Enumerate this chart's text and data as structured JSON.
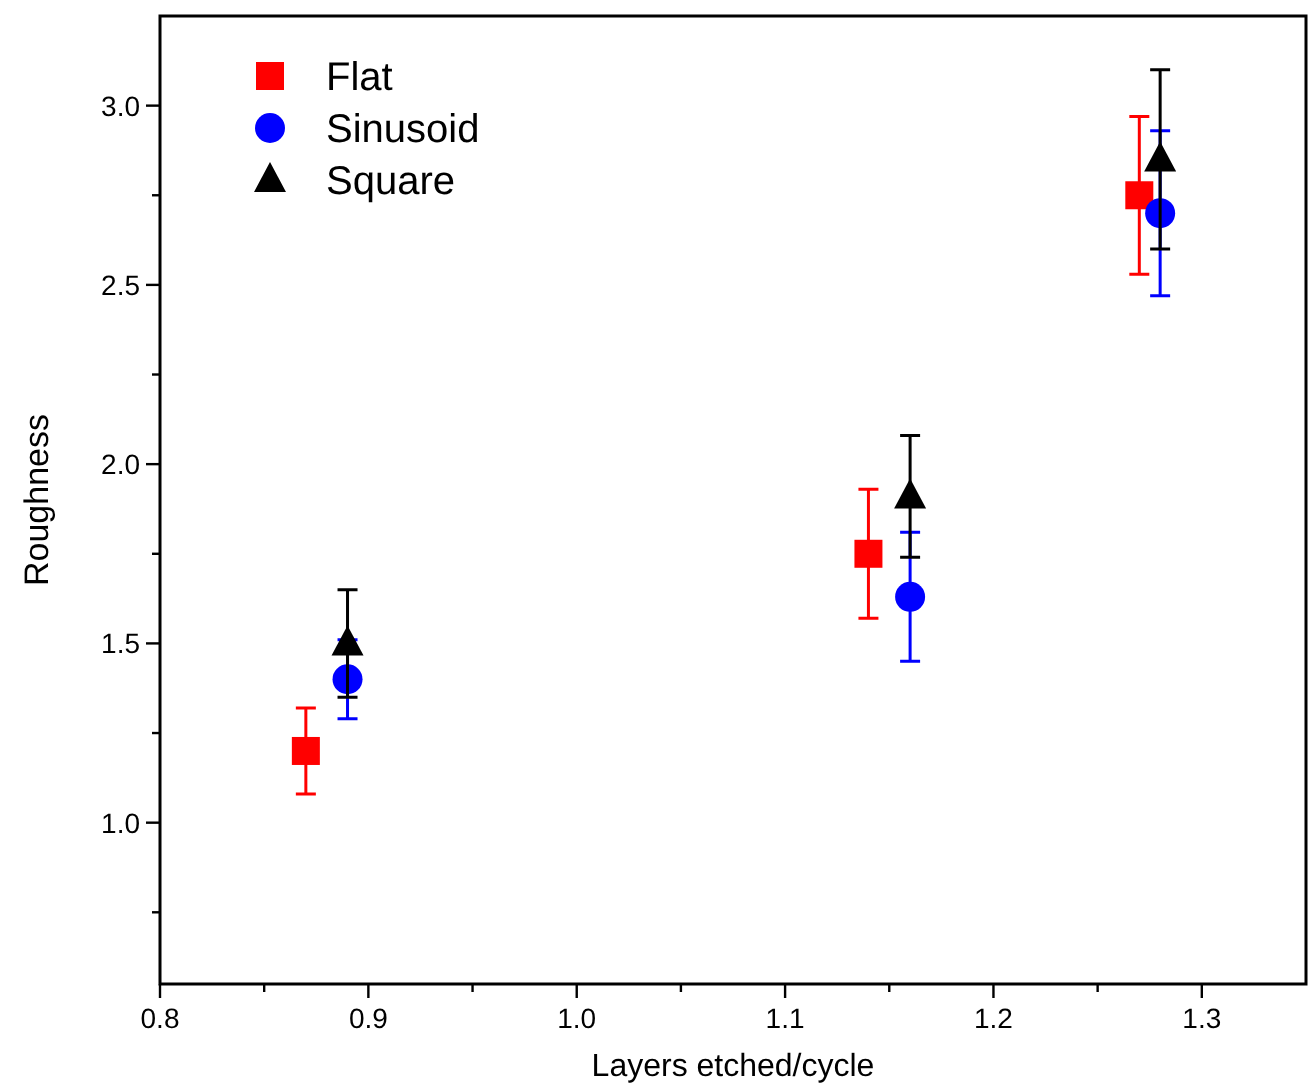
{
  "chart_data": {
    "type": "scatter",
    "xlabel": "Layers etched/cycle",
    "ylabel": "Roughness",
    "xlim": [
      0.8,
      1.35
    ],
    "ylim": [
      0.55,
      3.25
    ],
    "xticks": [
      0.8,
      {
        "value": 0.85,
        "label": null
      },
      0.9,
      {
        "value": 0.95,
        "label": null
      },
      {
        "value": 1,
        "label": "1.0"
      },
      {
        "value": 1.05,
        "label": null
      },
      1.1,
      {
        "value": 1.15,
        "label": null
      },
      1.2,
      {
        "value": 1.25,
        "label": null
      },
      1.3
    ],
    "yticks": [
      {
        "value": 0.75,
        "label": null
      },
      {
        "value": 1,
        "label": "1.0"
      },
      {
        "value": 1.25,
        "label": null
      },
      1.5,
      {
        "value": 1.75,
        "label": null
      },
      {
        "value": 2,
        "label": "2.0"
      },
      {
        "value": 2.25,
        "label": null
      },
      2.5,
      {
        "value": 2.75,
        "label": null
      },
      {
        "value": 3,
        "label": "3.0"
      }
    ],
    "legend": "top left",
    "grid": false,
    "series": [
      {
        "name": "Flat",
        "color": "#ff0000",
        "marker": "square",
        "x": [
          0.87,
          1.14,
          1.27
        ],
        "values": [
          1.2,
          1.75,
          2.75
        ],
        "errors": [
          0.12,
          0.18,
          0.22
        ]
      },
      {
        "name": "Sinusoid",
        "color": "#0000ff",
        "marker": "circle",
        "x": [
          0.89,
          1.16,
          1.28
        ],
        "values": [
          1.4,
          1.63,
          2.7
        ],
        "errors": [
          0.11,
          0.18,
          0.23
        ]
      },
      {
        "name": "Square",
        "color": "#000000",
        "marker": "triangle",
        "x": [
          0.89,
          1.16,
          1.28
        ],
        "values": [
          1.5,
          1.91,
          2.85
        ],
        "errors": [
          0.15,
          0.17,
          0.25
        ]
      }
    ]
  }
}
